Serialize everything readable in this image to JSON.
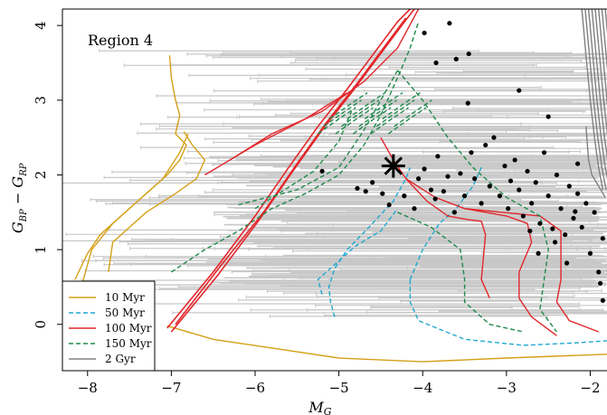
{
  "chart_data": {
    "type": "scatter",
    "panel_label": "Region 4",
    "xlabel": "M",
    "xlabel_sub": "G",
    "ylabel_main": "G",
    "ylabel_sub1": "BP",
    "ylabel_minus": " − ",
    "ylabel_main2": "G",
    "ylabel_sub2": "RP",
    "xlim": [
      -8.3,
      -1.8
    ],
    "ylim": [
      -0.62,
      4.22
    ],
    "x_ticks": [
      -8,
      -7,
      -6,
      -5,
      -4,
      -3,
      -2
    ],
    "x_tick_labels": [
      "−8",
      "−7",
      "−6",
      "−5",
      "−4",
      "−3",
      "−2"
    ],
    "y_ticks": [
      0,
      1,
      2,
      3,
      4
    ],
    "y_tick_labels": [
      "0",
      "1",
      "2",
      "3",
      "4"
    ],
    "highlight_star": {
      "x": -4.35,
      "y": 2.12
    },
    "stars": [
      {
        "x": -3.68,
        "y": 4.03
      },
      {
        "x": -3.98,
        "y": 3.9
      },
      {
        "x": -3.45,
        "y": 3.62
      },
      {
        "x": -3.6,
        "y": 3.55
      },
      {
        "x": -3.84,
        "y": 3.5
      },
      {
        "x": -3.46,
        "y": 2.96
      },
      {
        "x": -2.85,
        "y": 3.13
      },
      {
        "x": -2.5,
        "y": 2.78
      },
      {
        "x": -2.18,
        "y": 1.51
      },
      {
        "x": -5.2,
        "y": 2.05
      },
      {
        "x": -4.78,
        "y": 1.82
      },
      {
        "x": -4.68,
        "y": 1.78
      },
      {
        "x": -4.6,
        "y": 1.9
      },
      {
        "x": -4.4,
        "y": 1.6
      },
      {
        "x": -4.22,
        "y": 1.72
      },
      {
        "x": -4.05,
        "y": 1.95
      },
      {
        "x": -3.98,
        "y": 2.08
      },
      {
        "x": -4.1,
        "y": 1.55
      },
      {
        "x": -3.9,
        "y": 1.8
      },
      {
        "x": -3.82,
        "y": 2.25
      },
      {
        "x": -3.75,
        "y": 1.78
      },
      {
        "x": -3.7,
        "y": 1.98
      },
      {
        "x": -3.62,
        "y": 1.5
      },
      {
        "x": -3.55,
        "y": 2.02
      },
      {
        "x": -3.5,
        "y": 1.72
      },
      {
        "x": -3.42,
        "y": 2.3
      },
      {
        "x": -3.38,
        "y": 1.95
      },
      {
        "x": -3.3,
        "y": 1.62
      },
      {
        "x": -3.25,
        "y": 2.4
      },
      {
        "x": -3.2,
        "y": 1.85
      },
      {
        "x": -3.15,
        "y": 2.5
      },
      {
        "x": -3.08,
        "y": 1.72
      },
      {
        "x": -3.02,
        "y": 2.12
      },
      {
        "x": -2.98,
        "y": 1.55
      },
      {
        "x": -2.95,
        "y": 1.92
      },
      {
        "x": -2.9,
        "y": 2.2
      },
      {
        "x": -2.85,
        "y": 1.8
      },
      {
        "x": -2.8,
        "y": 1.45
      },
      {
        "x": -2.75,
        "y": 2.05
      },
      {
        "x": -2.7,
        "y": 1.62
      },
      {
        "x": -2.65,
        "y": 1.9
      },
      {
        "x": -2.6,
        "y": 1.35
      },
      {
        "x": -2.55,
        "y": 2.3
      },
      {
        "x": -2.5,
        "y": 1.72
      },
      {
        "x": -2.45,
        "y": 1.28
      },
      {
        "x": -2.4,
        "y": 2.0
      },
      {
        "x": -2.35,
        "y": 1.55
      },
      {
        "x": -2.3,
        "y": 1.2
      },
      {
        "x": -2.25,
        "y": 1.85
      },
      {
        "x": -2.2,
        "y": 1.42
      },
      {
        "x": -2.15,
        "y": 2.15
      },
      {
        "x": -2.1,
        "y": 1.3
      },
      {
        "x": -2.05,
        "y": 1.62
      },
      {
        "x": -2.0,
        "y": 0.95
      },
      {
        "x": -1.95,
        "y": 1.5
      },
      {
        "x": -1.9,
        "y": 0.7
      },
      {
        "x": -1.85,
        "y": 1.15
      },
      {
        "x": -2.62,
        "y": 0.95
      },
      {
        "x": -2.28,
        "y": 0.82
      },
      {
        "x": -1.85,
        "y": 0.32
      },
      {
        "x": -1.88,
        "y": 0.55
      },
      {
        "x": -2.42,
        "y": 1.1
      },
      {
        "x": -2.15,
        "y": 1.75
      },
      {
        "x": -2.72,
        "y": 1.25
      },
      {
        "x": -3.85,
        "y": 1.68
      },
      {
        "x": -4.48,
        "y": 1.75
      }
    ],
    "legend": [
      {
        "label": "10 Myr",
        "color": "#d4a017",
        "dash": "solid"
      },
      {
        "label": "50 Myr",
        "color": "#1fa8cf",
        "dash": "dashed"
      },
      {
        "label": "100 Myr",
        "color": "#e3262b",
        "dash": "solid"
      },
      {
        "label": "150 Myr",
        "color": "#1f8a4c",
        "dash": "dashed"
      },
      {
        "label": "2 Gyr",
        "color": "#808080",
        "dash": "solid"
      }
    ],
    "error_bar_color": "#c8c8c8",
    "point_color": "#000000",
    "legend_position": "bottom-left"
  }
}
